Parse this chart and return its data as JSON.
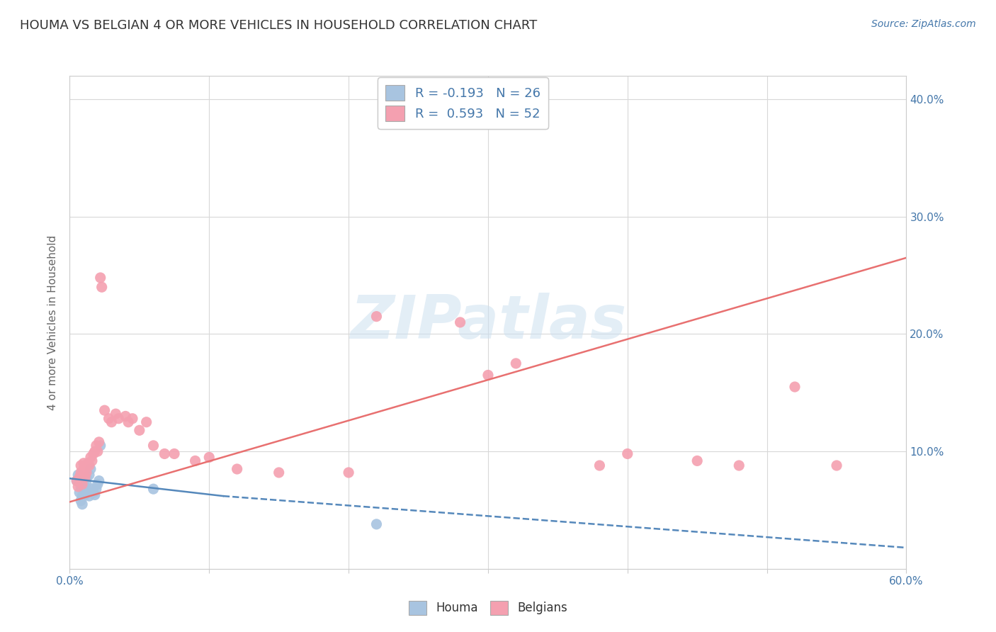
{
  "title": "HOUMA VS BELGIAN 4 OR MORE VEHICLES IN HOUSEHOLD CORRELATION CHART",
  "source_text": "Source: ZipAtlas.com",
  "ylabel": "4 or more Vehicles in Household",
  "xlim": [
    0.0,
    0.6
  ],
  "ylim": [
    0.0,
    0.42
  ],
  "x_ticks": [
    0.0,
    0.1,
    0.2,
    0.3,
    0.4,
    0.5,
    0.6
  ],
  "y_ticks": [
    0.0,
    0.1,
    0.2,
    0.3,
    0.4
  ],
  "background_color": "#ffffff",
  "grid_color": "#d8d8d8",
  "houma_color": "#a8c4e0",
  "belgian_color": "#f4a0b0",
  "houma_line_color": "#5588bb",
  "belgian_line_color": "#e87070",
  "houma_scatter": [
    [
      0.005,
      0.075
    ],
    [
      0.006,
      0.08
    ],
    [
      0.007,
      0.065
    ],
    [
      0.008,
      0.07
    ],
    [
      0.008,
      0.058
    ],
    [
      0.009,
      0.055
    ],
    [
      0.009,
      0.062
    ],
    [
      0.01,
      0.075
    ],
    [
      0.01,
      0.068
    ],
    [
      0.011,
      0.07
    ],
    [
      0.011,
      0.063
    ],
    [
      0.012,
      0.072
    ],
    [
      0.012,
      0.078
    ],
    [
      0.013,
      0.065
    ],
    [
      0.014,
      0.08
    ],
    [
      0.014,
      0.062
    ],
    [
      0.015,
      0.085
    ],
    [
      0.016,
      0.068
    ],
    [
      0.017,
      0.065
    ],
    [
      0.018,
      0.063
    ],
    [
      0.019,
      0.068
    ],
    [
      0.02,
      0.072
    ],
    [
      0.021,
      0.075
    ],
    [
      0.022,
      0.105
    ],
    [
      0.06,
      0.068
    ],
    [
      0.22,
      0.038
    ]
  ],
  "belgian_scatter": [
    [
      0.005,
      0.075
    ],
    [
      0.006,
      0.07
    ],
    [
      0.007,
      0.078
    ],
    [
      0.008,
      0.082
    ],
    [
      0.008,
      0.088
    ],
    [
      0.009,
      0.072
    ],
    [
      0.009,
      0.08
    ],
    [
      0.01,
      0.085
    ],
    [
      0.01,
      0.09
    ],
    [
      0.011,
      0.085
    ],
    [
      0.011,
      0.078
    ],
    [
      0.012,
      0.088
    ],
    [
      0.012,
      0.082
    ],
    [
      0.013,
      0.09
    ],
    [
      0.014,
      0.088
    ],
    [
      0.015,
      0.095
    ],
    [
      0.016,
      0.092
    ],
    [
      0.017,
      0.098
    ],
    [
      0.018,
      0.1
    ],
    [
      0.019,
      0.105
    ],
    [
      0.02,
      0.1
    ],
    [
      0.021,
      0.108
    ],
    [
      0.022,
      0.248
    ],
    [
      0.023,
      0.24
    ],
    [
      0.025,
      0.135
    ],
    [
      0.028,
      0.128
    ],
    [
      0.03,
      0.125
    ],
    [
      0.033,
      0.132
    ],
    [
      0.035,
      0.128
    ],
    [
      0.04,
      0.13
    ],
    [
      0.042,
      0.125
    ],
    [
      0.045,
      0.128
    ],
    [
      0.05,
      0.118
    ],
    [
      0.055,
      0.125
    ],
    [
      0.06,
      0.105
    ],
    [
      0.068,
      0.098
    ],
    [
      0.075,
      0.098
    ],
    [
      0.09,
      0.092
    ],
    [
      0.1,
      0.095
    ],
    [
      0.12,
      0.085
    ],
    [
      0.15,
      0.082
    ],
    [
      0.2,
      0.082
    ],
    [
      0.22,
      0.215
    ],
    [
      0.28,
      0.21
    ],
    [
      0.3,
      0.165
    ],
    [
      0.32,
      0.175
    ],
    [
      0.38,
      0.088
    ],
    [
      0.4,
      0.098
    ],
    [
      0.45,
      0.092
    ],
    [
      0.48,
      0.088
    ],
    [
      0.52,
      0.155
    ],
    [
      0.55,
      0.088
    ]
  ],
  "houma_trendline_solid": {
    "x": [
      0.0,
      0.11
    ],
    "y": [
      0.077,
      0.062
    ]
  },
  "houma_trendline_dashed": {
    "x": [
      0.11,
      0.6
    ],
    "y": [
      0.062,
      0.018
    ]
  },
  "belgian_trendline": {
    "x": [
      0.0,
      0.6
    ],
    "y": [
      0.057,
      0.265
    ]
  }
}
